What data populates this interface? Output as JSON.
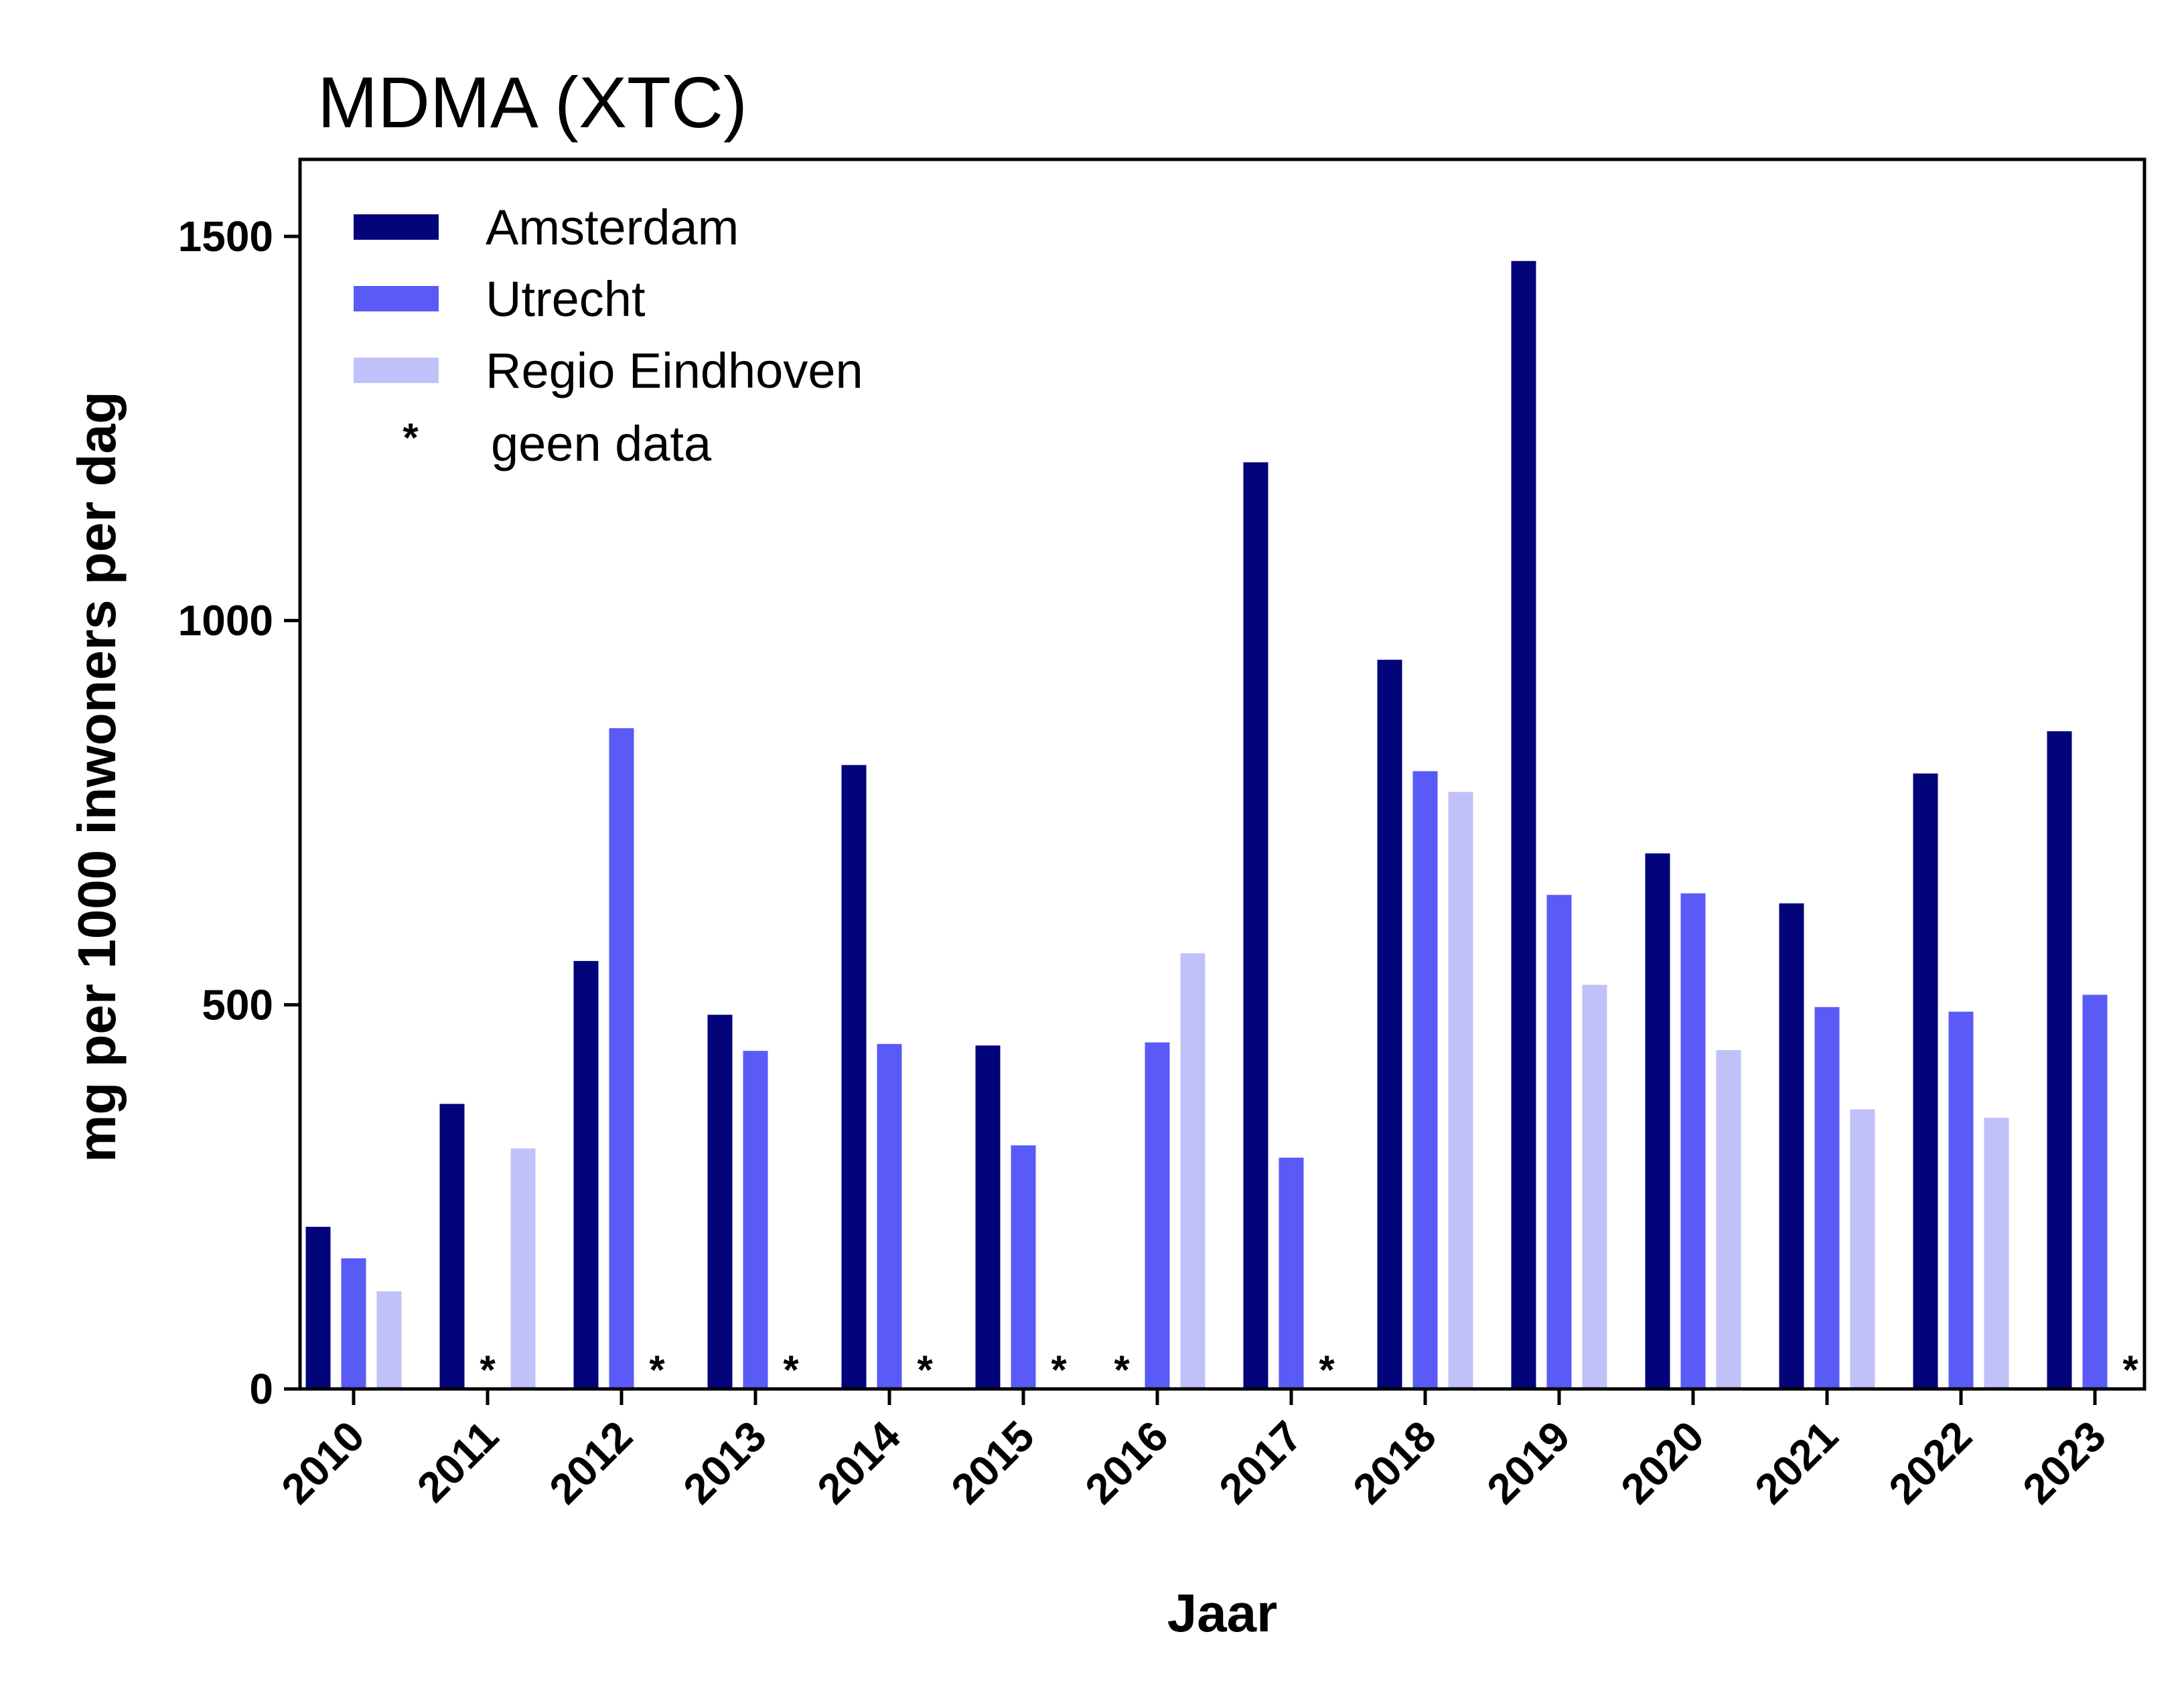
{
  "chart_data": {
    "type": "bar",
    "title": "MDMA (XTC)",
    "xlabel": "Jaar",
    "ylabel": "mg per 1000 inwoners per dag",
    "ylim": [
      0,
      1600
    ],
    "yticks": [
      0,
      500,
      1000,
      1500
    ],
    "categories": [
      "2010",
      "2011",
      "2012",
      "2013",
      "2014",
      "2015",
      "2016",
      "2017",
      "2018",
      "2019",
      "2020",
      "2021",
      "2022",
      "2023"
    ],
    "series": [
      {
        "name": "Amsterdam",
        "color": "#03037a",
        "values": [
          211,
          371,
          557,
          487,
          812,
          447,
          null,
          1206,
          949,
          1468,
          697,
          632,
          801,
          856
        ]
      },
      {
        "name": "Utrecht",
        "color": "#5a5af7",
        "values": [
          170,
          null,
          860,
          440,
          449,
          317,
          451,
          301,
          804,
          643,
          645,
          497,
          491,
          513
        ]
      },
      {
        "name": "Regio Eindhoven",
        "color": "#c1c1f9",
        "values": [
          127,
          313,
          null,
          null,
          null,
          null,
          567,
          null,
          777,
          526,
          441,
          364,
          353,
          null
        ]
      }
    ],
    "legend_note": {
      "symbol": "*",
      "label": "geen data"
    },
    "legend_position": "top-left",
    "grid": false
  }
}
